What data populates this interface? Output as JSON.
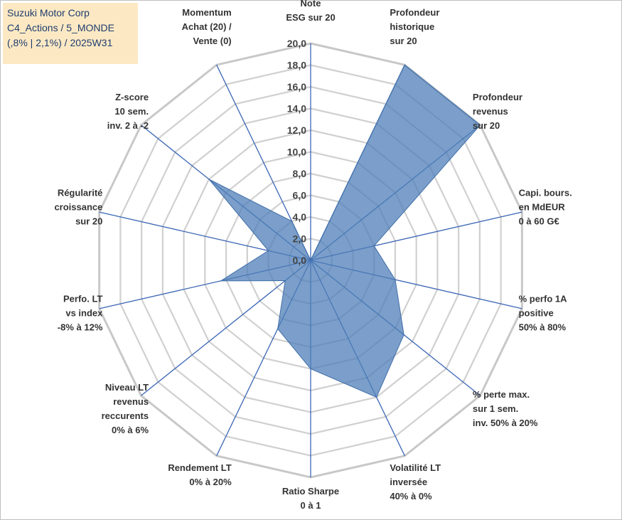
{
  "title": {
    "line1": "Suzuki Motor Corp",
    "line2": "C4_Actions / 5_MONDE",
    "line3": "(,8% | 2,1%) / 2025W31"
  },
  "colors": {
    "fill": "#4f7fb8",
    "stroke": "#3f6ea8",
    "spoke": "#3b66b5",
    "ring": "#d0d0d0",
    "outer_ring": "#c8c8c8",
    "title_bg": "#fce9c4",
    "title_text": "#1f3c6e"
  },
  "chart_data": {
    "type": "radar",
    "rmin": 0,
    "rmax": 20,
    "tick_step": 2,
    "tick_labels": [
      "0,0",
      "2,0",
      "4,0",
      "6,0",
      "8,0",
      "10,0",
      "12,0",
      "14,0",
      "16,0",
      "18,0",
      "20,0"
    ],
    "axes": [
      {
        "label": [
          "Note",
          "ESG sur 20"
        ],
        "value": 0
      },
      {
        "label": [
          "Profondeur",
          "historique",
          "sur 20"
        ],
        "value": 20
      },
      {
        "label": [
          "Profondeur",
          "revenus",
          "sur 20"
        ],
        "value": 20
      },
      {
        "label": [
          "Capi. bours.",
          "en MdEUR",
          "0 à 60 G€"
        ],
        "value": 6
      },
      {
        "label": [
          "% perfo 1A",
          "positive",
          "50% à 80%"
        ],
        "value": 8
      },
      {
        "label": [
          "% perte max.",
          "sur 1 sem.",
          "inv. 50% à 20%"
        ],
        "value": 11
      },
      {
        "label": [
          "Volatilité LT",
          "inversée",
          "40% à 0%"
        ],
        "value": 14
      },
      {
        "label": [
          "Ratio Sharpe",
          "0 à 1"
        ],
        "value": 10
      },
      {
        "label": [
          "Rendement LT",
          "0% à 20%"
        ],
        "value": 7
      },
      {
        "label": [
          "Niveau LT",
          "revenus",
          "reccurents",
          "0% à 6%"
        ],
        "value": 3
      },
      {
        "label": [
          "Perfo. LT",
          "vs index",
          "-8% à 12%"
        ],
        "value": 8.5
      },
      {
        "label": [
          "Régularité",
          "croissance",
          "sur 20"
        ],
        "value": 4
      },
      {
        "label": [
          "Z-score",
          "10 sem.",
          "inv. 2 à -2"
        ],
        "value": 12
      },
      {
        "label": [
          "Momentum",
          "Achat (20) /",
          "Vente (0)"
        ],
        "value": 4
      }
    ]
  }
}
